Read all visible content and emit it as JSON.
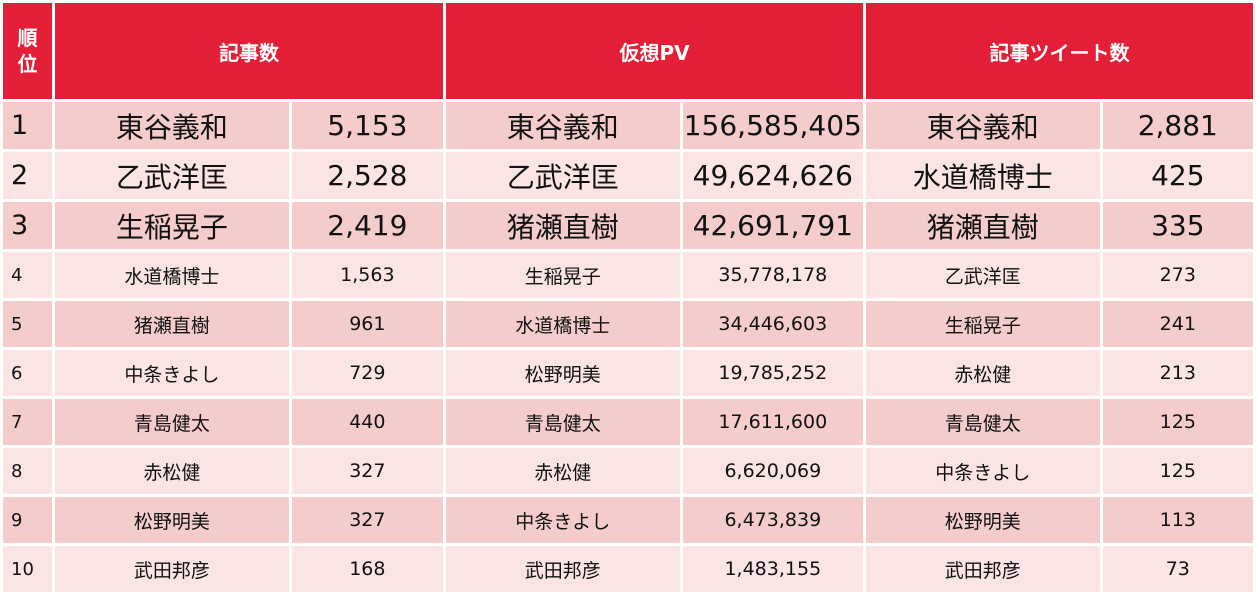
{
  "chart_data": {
    "type": "table",
    "columns": [
      "順位",
      "記事数",
      "仮想PV",
      "記事ツイート数"
    ],
    "rank_header": [
      "順",
      "位"
    ],
    "rows": [
      {
        "rank": "1",
        "articles": {
          "name": "東谷義和",
          "value": "5,153"
        },
        "pv": {
          "name": "東谷義和",
          "value": "156,585,405"
        },
        "tweets": {
          "name": "東谷義和",
          "value": "2,881"
        }
      },
      {
        "rank": "2",
        "articles": {
          "name": "乙武洋匡",
          "value": "2,528"
        },
        "pv": {
          "name": "乙武洋匡",
          "value": "49,624,626"
        },
        "tweets": {
          "name": "水道橋博士",
          "value": "425"
        }
      },
      {
        "rank": "3",
        "articles": {
          "name": "生稲晃子",
          "value": "2,419"
        },
        "pv": {
          "name": "猪瀬直樹",
          "value": "42,691,791"
        },
        "tweets": {
          "name": "猪瀬直樹",
          "value": "335"
        }
      },
      {
        "rank": "4",
        "articles": {
          "name": "水道橋博士",
          "value": "1,563"
        },
        "pv": {
          "name": "生稲晃子",
          "value": "35,778,178"
        },
        "tweets": {
          "name": "乙武洋匡",
          "value": "273"
        }
      },
      {
        "rank": "5",
        "articles": {
          "name": "猪瀬直樹",
          "value": "961"
        },
        "pv": {
          "name": "水道橋博士",
          "value": "34,446,603"
        },
        "tweets": {
          "name": "生稲晃子",
          "value": "241"
        }
      },
      {
        "rank": "6",
        "articles": {
          "name": "中条きよし",
          "value": "729"
        },
        "pv": {
          "name": "松野明美",
          "value": "19,785,252"
        },
        "tweets": {
          "name": "赤松健",
          "value": "213"
        }
      },
      {
        "rank": "7",
        "articles": {
          "name": "青島健太",
          "value": "440"
        },
        "pv": {
          "name": "青島健太",
          "value": "17,611,600"
        },
        "tweets": {
          "name": "青島健太",
          "value": "125"
        }
      },
      {
        "rank": "8",
        "articles": {
          "name": "赤松健",
          "value": "327"
        },
        "pv": {
          "name": "赤松健",
          "value": "6,620,069"
        },
        "tweets": {
          "name": "中条きよし",
          "value": "125"
        }
      },
      {
        "rank": "9",
        "articles": {
          "name": "松野明美",
          "value": "327"
        },
        "pv": {
          "name": "中条きよし",
          "value": "6,473,839"
        },
        "tweets": {
          "name": "松野明美",
          "value": "113"
        }
      },
      {
        "rank": "10",
        "articles": {
          "name": "武田邦彦",
          "value": "168"
        },
        "pv": {
          "name": "武田邦彦",
          "value": "1,483,155"
        },
        "tweets": {
          "name": "武田邦彦",
          "value": "73"
        }
      }
    ],
    "colors": {
      "header": "#e21f36",
      "row_dark": "#f4cccc",
      "row_light": "#fbe4e4",
      "header_text": "#ffffff"
    }
  }
}
